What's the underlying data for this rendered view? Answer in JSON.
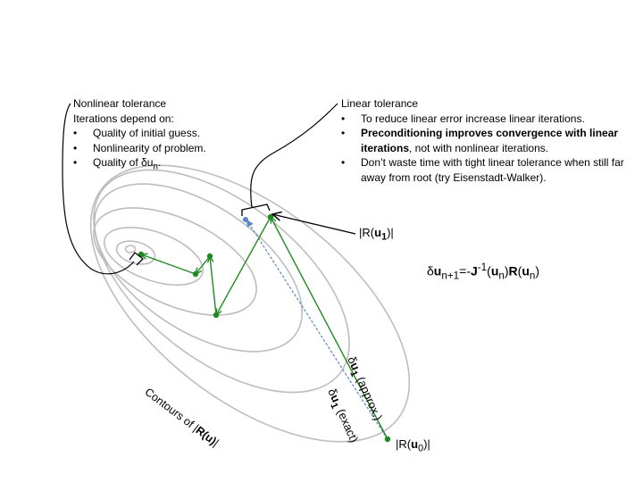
{
  "nonlinear": {
    "title": "Nonlinear tolerance",
    "subtitle": "Iterations depend on:",
    "items": [
      {
        "text": "Quality of initial guess."
      },
      {
        "text": "Nonlinearity of problem."
      },
      {
        "text": "Quality of δu",
        "sub": "n",
        "suffix": "."
      }
    ]
  },
  "linear": {
    "title": "Linear tolerance",
    "item1": "To reduce linear error increase linear iterations.",
    "item2_bold": "Preconditioning improves convergence with linear iterations",
    "item2_rest": ", not with nonlinear iterations.",
    "item3": "Don’t waste time with tight linear tolerance when still far away from root (try Eisenstadt-Walker)."
  },
  "labels": {
    "r1_pre": "|R(",
    "r1_bold": "u",
    "r1_sub": "1",
    "r1_post": ")|",
    "r0_pre": "|R(",
    "r0_bold": "u",
    "r0_sub": "0",
    "r0_post": ")|",
    "eq_delta": "δ",
    "eq_u": "u",
    "eq_sub": "n+1",
    "eq_mid": "=-",
    "eq_J": "J",
    "eq_sup": "-1",
    "eq_open": "(",
    "eq_u2": "u",
    "eq_sub2": "n",
    "eq_close": ")",
    "eq_R": "R",
    "eq_open2": "(",
    "eq_u3": "u",
    "eq_sub3": "n",
    "eq_close2": ")",
    "contours_pre": "Contours of |",
    "contours_bold": "R(u)",
    "contours_post": "|",
    "approx_delta": "δ",
    "approx_u": "u",
    "approx_sub": "1",
    "approx_rest": " (approx.)",
    "exact_delta": "δ",
    "exact_u": "u",
    "exact_sub": "1",
    "exact_rest": " (exact)"
  },
  "colors": {
    "contour": "#bdbdbd",
    "path": "#1f8a1f",
    "exact": "#5b86c8",
    "callout": "#000000"
  }
}
